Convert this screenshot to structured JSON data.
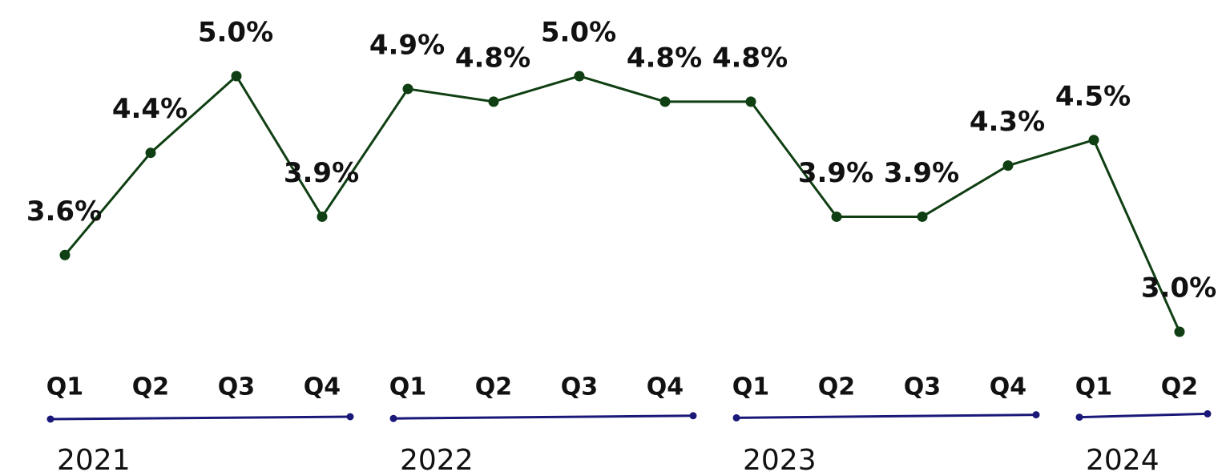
{
  "chart_data": {
    "type": "line",
    "groups": [
      {
        "label": "2021",
        "categories": [
          "Q1",
          "Q2",
          "Q3",
          "Q4"
        ]
      },
      {
        "label": "2022",
        "categories": [
          "Q1",
          "Q2",
          "Q3",
          "Q4"
        ]
      },
      {
        "label": "2023",
        "categories": [
          "Q1",
          "Q2",
          "Q3",
          "Q4"
        ]
      },
      {
        "label": "2024",
        "categories": [
          "Q1",
          "Q2"
        ]
      }
    ],
    "series": [
      {
        "color": "#0f3f12",
        "values": [
          3.6,
          4.4,
          5.0,
          3.9,
          4.9,
          4.8,
          5.0,
          4.8,
          4.8,
          3.9,
          3.9,
          4.3,
          4.5,
          3.0
        ],
        "value_labels": [
          "3.6%",
          "4.4%",
          "5.0%",
          "3.9%",
          "4.9%",
          "4.8%",
          "5.0%",
          "4.8%",
          "4.8%",
          "3.9%",
          "3.9%",
          "4.3%",
          "4.5%",
          "3.0%"
        ]
      }
    ],
    "group_color": "#1a1878"
  }
}
